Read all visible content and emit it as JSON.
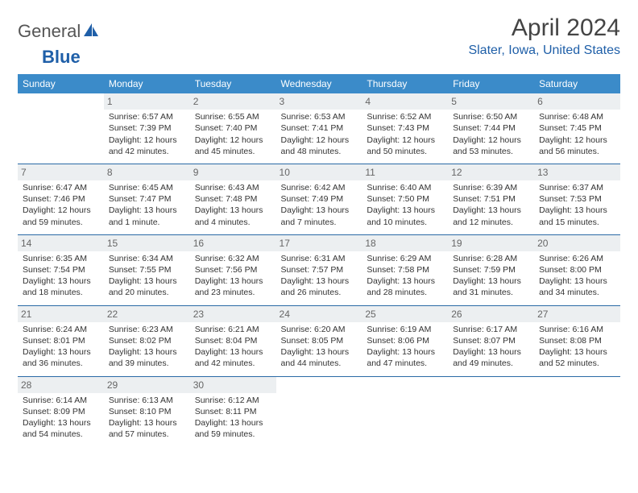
{
  "colors": {
    "header_blue": "#3b8bc9",
    "logo_blue": "#1f5fa8",
    "daynum_bg": "#eceff1",
    "rule": "#2a6aa6"
  },
  "logo": {
    "part1": "General",
    "part2": "Blue"
  },
  "title": "April 2024",
  "location": "Slater, Iowa, United States",
  "days_of_week": [
    "Sunday",
    "Monday",
    "Tuesday",
    "Wednesday",
    "Thursday",
    "Friday",
    "Saturday"
  ],
  "weeks": [
    [
      null,
      {
        "n": "1",
        "sr": "6:57 AM",
        "ss": "7:39 PM",
        "dl": "12 hours and 42 minutes."
      },
      {
        "n": "2",
        "sr": "6:55 AM",
        "ss": "7:40 PM",
        "dl": "12 hours and 45 minutes."
      },
      {
        "n": "3",
        "sr": "6:53 AM",
        "ss": "7:41 PM",
        "dl": "12 hours and 48 minutes."
      },
      {
        "n": "4",
        "sr": "6:52 AM",
        "ss": "7:43 PM",
        "dl": "12 hours and 50 minutes."
      },
      {
        "n": "5",
        "sr": "6:50 AM",
        "ss": "7:44 PM",
        "dl": "12 hours and 53 minutes."
      },
      {
        "n": "6",
        "sr": "6:48 AM",
        "ss": "7:45 PM",
        "dl": "12 hours and 56 minutes."
      }
    ],
    [
      {
        "n": "7",
        "sr": "6:47 AM",
        "ss": "7:46 PM",
        "dl": "12 hours and 59 minutes."
      },
      {
        "n": "8",
        "sr": "6:45 AM",
        "ss": "7:47 PM",
        "dl": "13 hours and 1 minute."
      },
      {
        "n": "9",
        "sr": "6:43 AM",
        "ss": "7:48 PM",
        "dl": "13 hours and 4 minutes."
      },
      {
        "n": "10",
        "sr": "6:42 AM",
        "ss": "7:49 PM",
        "dl": "13 hours and 7 minutes."
      },
      {
        "n": "11",
        "sr": "6:40 AM",
        "ss": "7:50 PM",
        "dl": "13 hours and 10 minutes."
      },
      {
        "n": "12",
        "sr": "6:39 AM",
        "ss": "7:51 PM",
        "dl": "13 hours and 12 minutes."
      },
      {
        "n": "13",
        "sr": "6:37 AM",
        "ss": "7:53 PM",
        "dl": "13 hours and 15 minutes."
      }
    ],
    [
      {
        "n": "14",
        "sr": "6:35 AM",
        "ss": "7:54 PM",
        "dl": "13 hours and 18 minutes."
      },
      {
        "n": "15",
        "sr": "6:34 AM",
        "ss": "7:55 PM",
        "dl": "13 hours and 20 minutes."
      },
      {
        "n": "16",
        "sr": "6:32 AM",
        "ss": "7:56 PM",
        "dl": "13 hours and 23 minutes."
      },
      {
        "n": "17",
        "sr": "6:31 AM",
        "ss": "7:57 PM",
        "dl": "13 hours and 26 minutes."
      },
      {
        "n": "18",
        "sr": "6:29 AM",
        "ss": "7:58 PM",
        "dl": "13 hours and 28 minutes."
      },
      {
        "n": "19",
        "sr": "6:28 AM",
        "ss": "7:59 PM",
        "dl": "13 hours and 31 minutes."
      },
      {
        "n": "20",
        "sr": "6:26 AM",
        "ss": "8:00 PM",
        "dl": "13 hours and 34 minutes."
      }
    ],
    [
      {
        "n": "21",
        "sr": "6:24 AM",
        "ss": "8:01 PM",
        "dl": "13 hours and 36 minutes."
      },
      {
        "n": "22",
        "sr": "6:23 AM",
        "ss": "8:02 PM",
        "dl": "13 hours and 39 minutes."
      },
      {
        "n": "23",
        "sr": "6:21 AM",
        "ss": "8:04 PM",
        "dl": "13 hours and 42 minutes."
      },
      {
        "n": "24",
        "sr": "6:20 AM",
        "ss": "8:05 PM",
        "dl": "13 hours and 44 minutes."
      },
      {
        "n": "25",
        "sr": "6:19 AM",
        "ss": "8:06 PM",
        "dl": "13 hours and 47 minutes."
      },
      {
        "n": "26",
        "sr": "6:17 AM",
        "ss": "8:07 PM",
        "dl": "13 hours and 49 minutes."
      },
      {
        "n": "27",
        "sr": "6:16 AM",
        "ss": "8:08 PM",
        "dl": "13 hours and 52 minutes."
      }
    ],
    [
      {
        "n": "28",
        "sr": "6:14 AM",
        "ss": "8:09 PM",
        "dl": "13 hours and 54 minutes."
      },
      {
        "n": "29",
        "sr": "6:13 AM",
        "ss": "8:10 PM",
        "dl": "13 hours and 57 minutes."
      },
      {
        "n": "30",
        "sr": "6:12 AM",
        "ss": "8:11 PM",
        "dl": "13 hours and 59 minutes."
      },
      null,
      null,
      null,
      null
    ]
  ],
  "labels": {
    "sunrise": "Sunrise: ",
    "sunset": "Sunset: ",
    "daylight": "Daylight: "
  }
}
